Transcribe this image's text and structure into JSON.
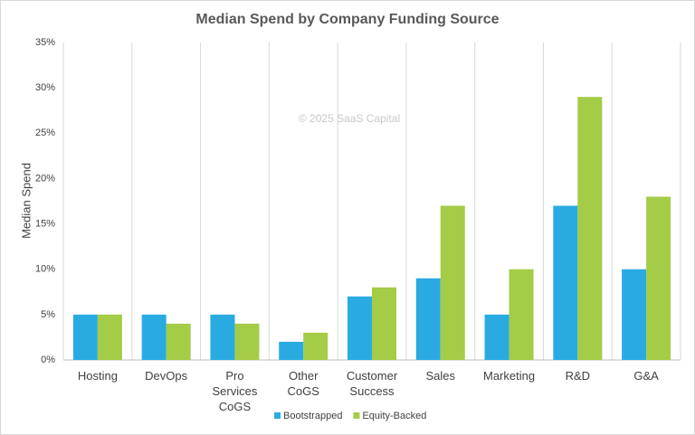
{
  "chart_data": {
    "type": "grouped_bar",
    "title": "Median Spend by Company Funding Source",
    "y_label": "Median Spend",
    "annotation": "© 2025 SaaS Capital",
    "categories": [
      "Hosting",
      "DevOps",
      "Pro Services CoGS",
      "Other CoGS",
      "Customer Success",
      "Sales",
      "Marketing",
      "R&D",
      "G&A"
    ],
    "series": [
      {
        "name": "Bootstrapped",
        "color": "#29abe2",
        "values": [
          5,
          5,
          5,
          2,
          7,
          9,
          5,
          17,
          10
        ]
      },
      {
        "name": "Equity-Backed",
        "color": "#a4cc46",
        "values": [
          5,
          4,
          4,
          3,
          8,
          17,
          10,
          29,
          18
        ]
      }
    ],
    "ylim": [
      0,
      35
    ],
    "yticks": [
      {
        "value": 0,
        "label": "0%"
      },
      {
        "value": 5,
        "label": "5%"
      },
      {
        "value": 10,
        "label": "10%"
      },
      {
        "value": 15,
        "label": "15%"
      },
      {
        "value": 20,
        "label": "20%"
      },
      {
        "value": 25,
        "label": "25%"
      },
      {
        "value": 30,
        "label": "30%"
      },
      {
        "value": 35,
        "label": "35%"
      }
    ],
    "category_separators": true,
    "legend": "bottom"
  }
}
